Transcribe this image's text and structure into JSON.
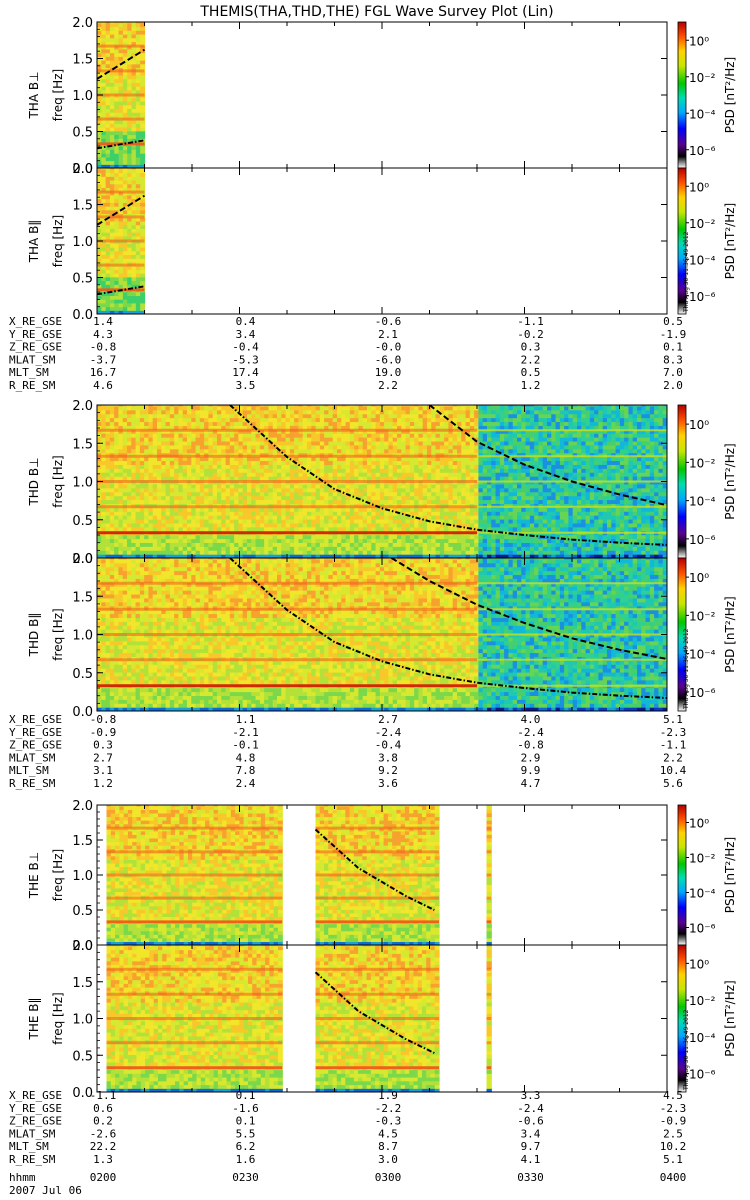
{
  "title": "THEMIS(THA,THD,THE) FGL Wave Survey Plot (Lin)",
  "colorbar": {
    "label": "PSD [nT²/Hz]",
    "ticks": [
      "10⁰",
      "10⁻²",
      "10⁻⁴",
      "10⁻⁶"
    ]
  },
  "stamp": "Thu Aug 30 11:36:49 2012",
  "freq_label": "freq [Hz]",
  "freq_ticks": [
    "0.0",
    "0.5",
    "1.0",
    "1.5",
    "2.0"
  ],
  "ephemeris_labels": [
    "X_RE_GSE",
    "Y_RE_GSE",
    "Z_RE_GSE",
    "MLAT_SM",
    "MLT_SM",
    "R_RE_SM"
  ],
  "groups": [
    {
      "panels": [
        {
          "probe_label": "THA B⊥"
        },
        {
          "probe_label": "THA B‖"
        }
      ],
      "ephemeris": [
        [
          "1.4",
          "0.4",
          "-0.6",
          "-1.1",
          "0.5"
        ],
        [
          "4.3",
          "3.4",
          "2.1",
          "-0.2",
          "-1.9"
        ],
        [
          "-0.8",
          "-0.4",
          "-0.0",
          "0.3",
          "0.1"
        ],
        [
          "-3.7",
          "-5.3",
          "-6.0",
          "2.2",
          "8.3"
        ],
        [
          "16.7",
          "17.4",
          "19.0",
          "0.5",
          "7.0"
        ],
        [
          "4.6",
          "3.5",
          "2.2",
          "1.2",
          "2.0"
        ]
      ]
    },
    {
      "panels": [
        {
          "probe_label": "THD B⊥"
        },
        {
          "probe_label": "THD B‖"
        }
      ],
      "ephemeris": [
        [
          "-0.8",
          "1.1",
          "2.7",
          "4.0",
          "5.1"
        ],
        [
          "-0.9",
          "-2.1",
          "-2.4",
          "-2.4",
          "-2.3"
        ],
        [
          "0.3",
          "-0.1",
          "-0.4",
          "-0.8",
          "-1.1"
        ],
        [
          "2.7",
          "4.8",
          "3.8",
          "2.9",
          "2.2"
        ],
        [
          "3.1",
          "7.8",
          "9.2",
          "9.9",
          "10.4"
        ],
        [
          "1.2",
          "2.4",
          "3.6",
          "4.7",
          "5.6"
        ]
      ]
    },
    {
      "panels": [
        {
          "probe_label": "THE B⊥"
        },
        {
          "probe_label": "THE B‖"
        }
      ],
      "ephemeris": [
        [
          "-1.1",
          "0.1",
          "1.9",
          "3.3",
          "4.5"
        ],
        [
          "0.6",
          "-1.6",
          "-2.2",
          "-2.4",
          "-2.3"
        ],
        [
          "0.2",
          "0.1",
          "-0.3",
          "-0.6",
          "-0.9"
        ],
        [
          "-2.6",
          "5.5",
          "4.5",
          "3.4",
          "2.5"
        ],
        [
          "22.2",
          "6.2",
          "8.7",
          "9.7",
          "10.2"
        ],
        [
          "1.3",
          "1.6",
          "3.0",
          "4.1",
          "5.1"
        ]
      ]
    }
  ],
  "time_row_label": "hhmm",
  "time_ticks": [
    "0200",
    "0230",
    "0300",
    "0330",
    "0400"
  ],
  "date": "2007 Jul 06",
  "chart_data": {
    "type": "heatmap",
    "title": "THEMIS(THA,THD,THE) FGL Wave Survey Plot (Lin)",
    "ylabel": "freq [Hz]",
    "ylim": [
      0,
      2.0
    ],
    "xlim": [
      "0200",
      "0400"
    ],
    "colorbar_scale": "log",
    "colorbar_range": [
      1e-07,
      10.0
    ],
    "panels": [
      {
        "name": "THA B⊥",
        "data_coverage": [
          [
            "0200",
            "0210"
          ]
        ],
        "series": [
          {
            "name": "upper_dashed",
            "x": [
              0,
              10
            ],
            "y": [
              1.22,
              1.62
            ]
          },
          {
            "name": "lower_dashdot",
            "x": [
              0,
              10
            ],
            "y": [
              0.27,
              0.38
            ]
          }
        ]
      },
      {
        "name": "THA B‖",
        "data_coverage": [
          [
            "0200",
            "0210"
          ]
        ],
        "series": [
          {
            "name": "upper_dashed",
            "x": [
              0,
              10
            ],
            "y": [
              1.22,
              1.62
            ]
          },
          {
            "name": "lower_dashdot",
            "x": [
              0,
              10
            ],
            "y": [
              0.27,
              0.38
            ]
          }
        ]
      },
      {
        "name": "THD B⊥",
        "data_coverage": [
          [
            "0200",
            "0400"
          ]
        ],
        "series": [
          {
            "name": "upper_dashed",
            "x": [
              70,
              80,
              90,
              100,
              110,
              120
            ],
            "y": [
              2.0,
              1.52,
              1.22,
              1.0,
              0.83,
              0.69
            ]
          },
          {
            "name": "lower_dashdot",
            "x": [
              28,
              40,
              50,
              60,
              70,
              80,
              90,
              100,
              110,
              120
            ],
            "y": [
              2.0,
              1.32,
              0.9,
              0.65,
              0.48,
              0.37,
              0.3,
              0.24,
              0.2,
              0.17
            ]
          }
        ]
      },
      {
        "name": "THD B‖",
        "data_coverage": [
          [
            "0200",
            "0400"
          ]
        ],
        "series": [
          {
            "name": "upper_dashed",
            "x": [
              62,
              70,
              80,
              90,
              100,
              110,
              120
            ],
            "y": [
              2.0,
              1.7,
              1.39,
              1.15,
              0.95,
              0.8,
              0.68
            ]
          },
          {
            "name": "lower_dashdot",
            "x": [
              28,
              40,
              50,
              60,
              70,
              80,
              90,
              100,
              110,
              120
            ],
            "y": [
              2.0,
              1.32,
              0.9,
              0.65,
              0.48,
              0.37,
              0.3,
              0.24,
              0.2,
              0.17
            ]
          }
        ]
      },
      {
        "name": "THE B⊥",
        "data_coverage": [
          [
            "0202",
            "0239"
          ],
          [
            "0246",
            "0312"
          ],
          [
            "0322",
            "0323"
          ]
        ],
        "series": [
          {
            "name": "dashdot",
            "x": [
              46,
              55,
              65,
              71
            ],
            "y": [
              1.65,
              1.1,
              0.7,
              0.5
            ]
          }
        ]
      },
      {
        "name": "THE B‖",
        "data_coverage": [
          [
            "0202",
            "0239"
          ],
          [
            "0246",
            "0312"
          ],
          [
            "0322",
            "0323"
          ]
        ],
        "series": [
          {
            "name": "dashdot",
            "x": [
              46,
              55,
              65,
              71
            ],
            "y": [
              1.63,
              1.1,
              0.72,
              0.53
            ]
          }
        ]
      }
    ]
  }
}
